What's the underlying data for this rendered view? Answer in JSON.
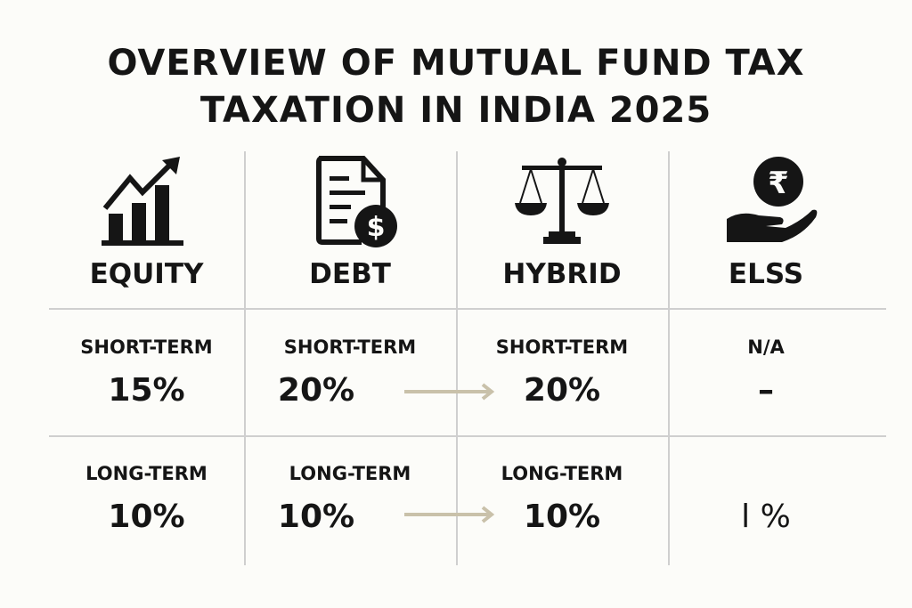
{
  "title": {
    "line1": "OVERVIEW OF MUTUAL FUND TAX",
    "line2": "TAXATION IN INDIA 2025"
  },
  "columns": [
    {
      "name": "EQUITY",
      "icon": "growth-chart-icon",
      "short_label": "SHORT-TERM",
      "short_value": "15%",
      "long_label": "LONG-TERM",
      "long_value": "10%"
    },
    {
      "name": "DEBT",
      "icon": "document-dollar-icon",
      "short_label": "SHORT-TERM",
      "short_value": "20%",
      "long_label": "LONG-TERM",
      "long_value": "10%"
    },
    {
      "name": "HYBRID",
      "icon": "balance-scale-icon",
      "short_label": "SHORT-TERM",
      "short_value": "20%",
      "long_label": "LONG-TERM",
      "long_value": "10%"
    },
    {
      "name": "ELSS",
      "icon": "hand-rupee-coin-icon",
      "short_label": "N/A",
      "short_value": "–",
      "long_label": "",
      "long_value": "l %"
    }
  ],
  "colors": {
    "text": "#151515",
    "arrow": "#c9c1aa",
    "divider": "#cfcfcf",
    "background": "#fcfcf9"
  }
}
